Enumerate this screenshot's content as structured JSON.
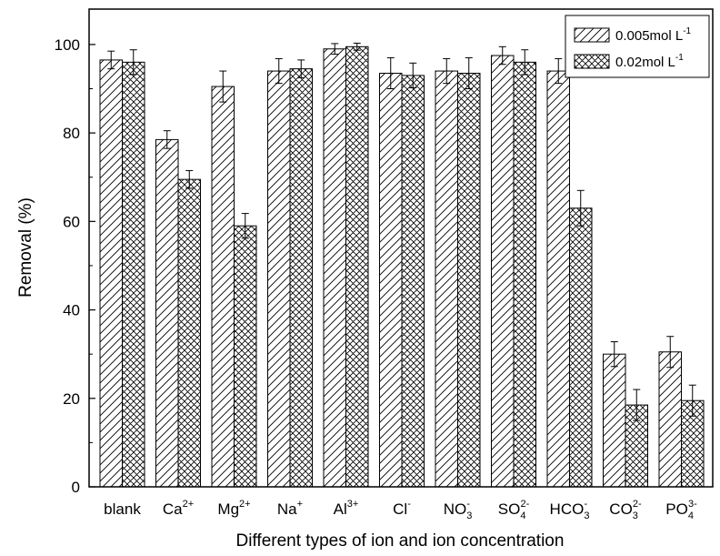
{
  "chart_data": {
    "type": "bar",
    "xlabel": "Different types of ion and ion concentration",
    "ylabel": "Removal (%)",
    "ylim": [
      0,
      108
    ],
    "yticks": [
      0,
      20,
      40,
      60,
      80,
      100
    ],
    "grid": false,
    "legend_position": "top-right",
    "categories": [
      {
        "base": "blank",
        "sub": "",
        "sup": ""
      },
      {
        "base": "Ca",
        "sub": "",
        "sup": "2+"
      },
      {
        "base": "Mg",
        "sub": "",
        "sup": "2+"
      },
      {
        "base": "Na",
        "sub": "",
        "sup": "+"
      },
      {
        "base": "Al",
        "sub": "",
        "sup": "3+"
      },
      {
        "base": "Cl",
        "sub": "",
        "sup": "-"
      },
      {
        "base": "NO",
        "sub": "3",
        "sup": "-"
      },
      {
        "base": "SO",
        "sub": "4",
        "sup": "2-"
      },
      {
        "base": "HCO",
        "sub": "3",
        "sup": "-"
      },
      {
        "base": "CO",
        "sub": "3",
        "sup": "2-"
      },
      {
        "base": "PO",
        "sub": "4",
        "sup": "3-"
      }
    ],
    "series": [
      {
        "name": "0.005mol L",
        "name_sup": "-1",
        "pattern": "diagonal",
        "values": [
          96.5,
          78.5,
          90.5,
          94.0,
          99.0,
          93.5,
          94.0,
          97.5,
          94.0,
          30.0,
          30.5
        ],
        "errors": [
          2.0,
          2.0,
          3.5,
          2.8,
          1.2,
          3.5,
          2.8,
          2.0,
          2.8,
          2.8,
          3.5
        ]
      },
      {
        "name": "0.02mol L",
        "name_sup": "-1",
        "pattern": "crosshatch",
        "values": [
          96.0,
          69.5,
          59.0,
          94.5,
          99.5,
          93.0,
          93.5,
          96.0,
          63.0,
          18.5,
          19.5
        ],
        "errors": [
          2.8,
          2.0,
          2.8,
          2.0,
          0.8,
          2.8,
          3.5,
          2.8,
          4.0,
          3.5,
          3.5
        ]
      }
    ]
  }
}
